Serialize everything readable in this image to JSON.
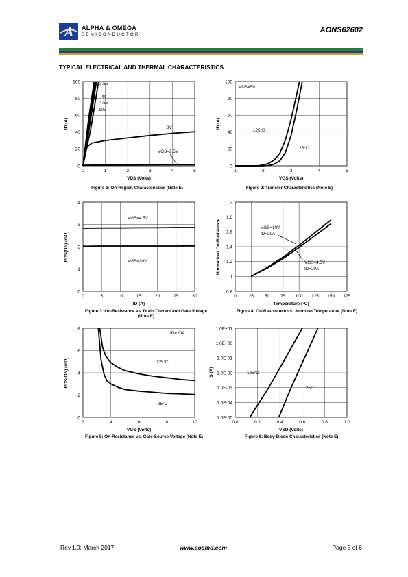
{
  "header": {
    "company": "ALPHA & OMEGA",
    "division": "SEMICONDUCTOR",
    "part_number": "AONS62602",
    "colors": {
      "green": "#2e7d32",
      "blue": "#1a3f93",
      "gold": "#c9a227"
    }
  },
  "section_title": "TYPICAL ELECTRICAL AND THERMAL CHARACTERISTICS",
  "footer": {
    "revision": "Rev.1.0: March 2017",
    "website": "www.aosmd.com",
    "page": "Page 3 of 6"
  },
  "chart_data": [
    {
      "id": "fig1",
      "type": "line",
      "caption": "Figure 1: On-Region Characteristics (Note E)",
      "xlabel": "VDS (Volts)",
      "ylabel": "ID (A)",
      "xlim": [
        0,
        5
      ],
      "ylim": [
        0,
        100
      ],
      "xticks": [
        0,
        1,
        2,
        3,
        4,
        5
      ],
      "yticks": [
        0,
        20,
        40,
        60,
        80,
        100
      ],
      "annotations": [
        "3.5V",
        "4V",
        "4.5V",
        "10V",
        "3V",
        "VGS=2.5V"
      ],
      "series": [
        {
          "name": "10V",
          "x": [
            0,
            0.25,
            0.5
          ],
          "y": [
            0,
            55,
            100
          ]
        },
        {
          "name": "4.5V",
          "x": [
            0,
            0.28,
            0.55
          ],
          "y": [
            0,
            52,
            100
          ]
        },
        {
          "name": "4V",
          "x": [
            0,
            0.3,
            0.6
          ],
          "y": [
            0,
            48,
            100
          ]
        },
        {
          "name": "3.5V",
          "x": [
            0,
            0.35,
            0.7
          ],
          "y": [
            0,
            44,
            100
          ]
        },
        {
          "name": "3V",
          "x": [
            0,
            0.1,
            0.2,
            0.4,
            1,
            2,
            3,
            4,
            5
          ],
          "y": [
            0,
            17,
            23,
            27,
            30,
            33,
            36,
            38.5,
            40.5
          ]
        },
        {
          "name": "VGS=2.5V",
          "x": [
            0,
            0.1,
            1,
            3,
            5
          ],
          "y": [
            0,
            0.8,
            1,
            1.2,
            1.4
          ]
        }
      ]
    },
    {
      "id": "fig2",
      "type": "line",
      "caption": "Figure 2: Transfer Characteristics (Note E)",
      "xlabel": "VGS (Volts)",
      "ylabel": "ID (A)",
      "xlim": [
        1,
        5
      ],
      "ylim": [
        0,
        100
      ],
      "xticks": [
        1,
        2,
        3,
        4,
        5
      ],
      "yticks": [
        0,
        20,
        40,
        60,
        80,
        100
      ],
      "annotations": [
        "VDS=5V",
        "125°C",
        "25°C"
      ],
      "series": [
        {
          "name": "125°C",
          "x": [
            1,
            1.8,
            2,
            2.2,
            2.4,
            2.6,
            2.8,
            3,
            3.2,
            3.3
          ],
          "y": [
            0,
            0,
            1,
            3,
            7,
            15,
            31,
            55,
            85,
            100
          ]
        },
        {
          "name": "25°C",
          "x": [
            1,
            2,
            2.2,
            2.4,
            2.6,
            2.8,
            3,
            3.2,
            3.4
          ],
          "y": [
            0,
            0,
            0.5,
            2,
            6,
            16,
            36,
            66,
            100
          ]
        }
      ]
    },
    {
      "id": "fig3",
      "type": "line",
      "caption": "Figure 3: On-Resistance vs. Drain Current and Gate Voltage (Note E)",
      "xlabel": "ID (A)",
      "ylabel": "RDS(ON) (mΩ)",
      "xlim": [
        0,
        30
      ],
      "ylim": [
        0,
        4
      ],
      "xticks": [
        0,
        5,
        10,
        15,
        20,
        25,
        30
      ],
      "yticks": [
        0,
        1,
        2,
        3,
        4
      ],
      "annotations": [
        "VGS=4.5V",
        "VGS=10V"
      ],
      "series": [
        {
          "name": "VGS=4.5V",
          "x": [
            0,
            5,
            10,
            15,
            20,
            25,
            30
          ],
          "y": [
            2.83,
            2.84,
            2.84,
            2.85,
            2.85,
            2.86,
            2.86
          ]
        },
        {
          "name": "VGS=10V",
          "x": [
            0,
            5,
            10,
            15,
            20,
            25,
            30
          ],
          "y": [
            2.02,
            2.03,
            2.03,
            2.03,
            2.03,
            2.03,
            2.04
          ]
        }
      ]
    },
    {
      "id": "fig4",
      "type": "line",
      "caption": "Figure 4: On-Resistance vs. Junction Temperature (Note E)",
      "xlabel": "Temperature (°C)",
      "ylabel": "Normalized On-Resistance",
      "xlim": [
        0,
        175
      ],
      "ylim": [
        0.8,
        2
      ],
      "xticks": [
        0,
        25,
        50,
        75,
        100,
        125,
        150,
        175
      ],
      "yticks": [
        0.8,
        1,
        1.2,
        1.4,
        1.6,
        1.8,
        2
      ],
      "annotations": [
        "VGS=10V",
        "ID=20A",
        "VGS=4.5V",
        "ID=20A"
      ],
      "series": [
        {
          "name": "VGS=10V",
          "x": [
            25,
            50,
            75,
            100,
            125,
            150
          ],
          "y": [
            1,
            1.12,
            1.26,
            1.42,
            1.59,
            1.76
          ]
        },
        {
          "name": "VGS=4.5V",
          "x": [
            25,
            50,
            75,
            100,
            125,
            150
          ],
          "y": [
            1,
            1.11,
            1.24,
            1.39,
            1.55,
            1.71
          ]
        }
      ]
    },
    {
      "id": "fig5",
      "type": "line",
      "caption": "Figure 5: On-Resistance vs. Gate-Source Voltage (Note E)",
      "xlabel": "VGS (Volts)",
      "ylabel": "RDS(ON) (mΩ)",
      "xlim": [
        2,
        10
      ],
      "ylim": [
        0,
        8
      ],
      "xticks": [
        2,
        4,
        6,
        8,
        10
      ],
      "yticks": [
        0,
        2,
        4,
        6,
        8
      ],
      "annotations": [
        "ID=20A",
        "125°C",
        "25°C"
      ],
      "series": [
        {
          "name": "125°C",
          "x": [
            3.2,
            3.4,
            3.6,
            3.8,
            4,
            4.5,
            5,
            6,
            7,
            8,
            9,
            10
          ],
          "y": [
            8,
            6.3,
            5.6,
            5.2,
            4.9,
            4.5,
            4.2,
            3.9,
            3.7,
            3.55,
            3.4,
            3.3
          ]
        },
        {
          "name": "25°C",
          "x": [
            3.1,
            3.3,
            3.5,
            3.7,
            4,
            4.5,
            5,
            6,
            7,
            8,
            9,
            10
          ],
          "y": [
            8,
            5.1,
            3.9,
            3.3,
            3,
            2.7,
            2.5,
            2.35,
            2.25,
            2.15,
            2.1,
            2.05
          ]
        }
      ]
    },
    {
      "id": "fig6",
      "type": "line",
      "caption": "Figure 6: Body-Diode Characteristics (Note E)",
      "xlabel": "VSD (Volts)",
      "ylabel": "IS (A)",
      "xlim": [
        0,
        1
      ],
      "ylim": [
        1e-05,
        10
      ],
      "yscale": "log",
      "xticks": [
        "0.0",
        "0.2",
        "0.4",
        "0.6",
        "0.8",
        "1.0"
      ],
      "yticks": [
        "1.0E-05",
        "1.0E-04",
        "1.0E-03",
        "1.0E-02",
        "1.0E-01",
        "1.0E+00",
        "1.0E+01"
      ],
      "annotations": [
        "125°C",
        "25°C"
      ],
      "series": [
        {
          "name": "125°C",
          "x": [
            0.13,
            0.3,
            0.45,
            0.6
          ],
          "y": [
            1e-05,
            0.001,
            0.1,
            10
          ]
        },
        {
          "name": "25°C",
          "x": [
            0.39,
            0.5,
            0.62,
            0.74
          ],
          "y": [
            1e-05,
            0.001,
            0.1,
            10
          ]
        }
      ]
    }
  ]
}
